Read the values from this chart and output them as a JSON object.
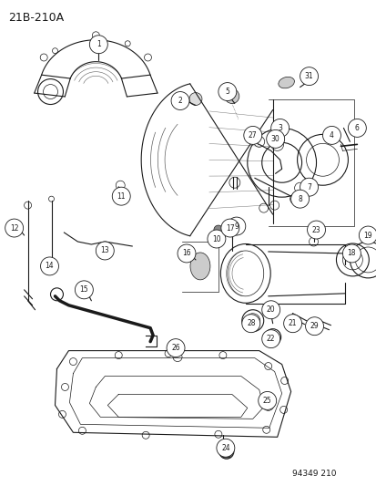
{
  "title": "21B-210A",
  "watermark": "94349 210",
  "bg_color": "#ffffff",
  "line_color": "#1a1a1a",
  "fig_width": 4.14,
  "fig_height": 5.33,
  "dpi": 100,
  "title_fontsize": 9,
  "watermark_fontsize": 6.5,
  "label_fontsize": 5.5,
  "circle_r": 0.013
}
